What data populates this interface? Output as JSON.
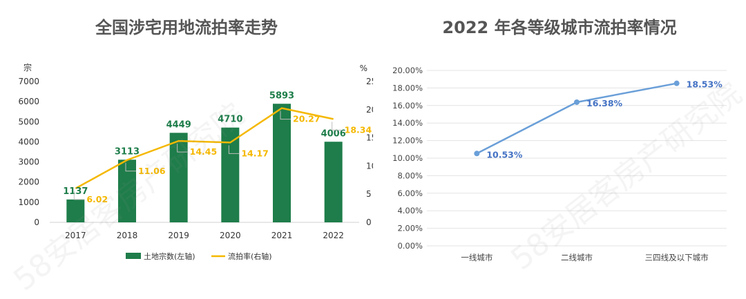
{
  "chart_data": [
    {
      "type": "bar+line",
      "title": "全国涉宅用地流拍率走势",
      "categories": [
        "2017",
        "2018",
        "2019",
        "2020",
        "2021",
        "2022"
      ],
      "series": [
        {
          "name": "土地宗数(左轴)",
          "type": "bar",
          "axis": "left",
          "values": [
            1137,
            3113,
            4449,
            4710,
            5893,
            4006
          ]
        },
        {
          "name": "流拍率(右轴)",
          "type": "line",
          "axis": "right",
          "values": [
            6.02,
            11.06,
            14.45,
            14.17,
            20.27,
            18.34
          ]
        }
      ],
      "ylabel_left": "宗",
      "ylabel_right": "%",
      "ylim_left": [
        0,
        7000
      ],
      "yticks_left": [
        "0",
        "1000",
        "2000",
        "3000",
        "4000",
        "5000",
        "6000",
        "7000"
      ],
      "ylim_right": [
        0,
        25
      ],
      "yticks_right": [
        "0",
        "5",
        "10",
        "15",
        "20",
        "25"
      ],
      "grid": false,
      "legend_position": "bottom",
      "colors": {
        "bar": "#1e7d4a",
        "line": "#f5b800"
      }
    },
    {
      "type": "line",
      "title": "2022 年各等级城市流拍率情况",
      "categories": [
        "一线城市",
        "二线城市",
        "三四线及以下城市"
      ],
      "values": [
        10.53,
        16.38,
        18.53
      ],
      "value_labels": [
        "10.53%",
        "16.38%",
        "18.53%"
      ],
      "ylim": [
        0,
        20
      ],
      "yticks": [
        "0.00%",
        "2.00%",
        "4.00%",
        "6.00%",
        "8.00%",
        "10.00%",
        "12.00%",
        "14.00%",
        "16.00%",
        "18.00%",
        "20.00%"
      ],
      "grid": true,
      "colors": {
        "line": "#6a9fd8",
        "label": "#4472c4"
      }
    }
  ],
  "watermark": "58安居客房产研究院"
}
